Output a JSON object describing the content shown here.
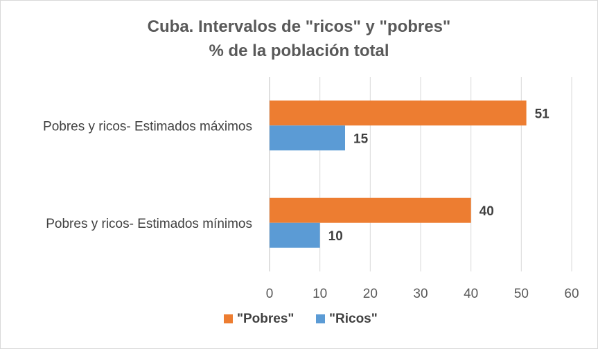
{
  "chart_data": {
    "type": "bar",
    "orientation": "horizontal",
    "title": "Cuba. Intervalos de \"ricos\" y \"pobres\"",
    "subtitle": "% de la población total",
    "categories": [
      "Pobres y ricos- Estimados máximos",
      "Pobres y ricos- Estimados mínimos"
    ],
    "series": [
      {
        "name": "\"Pobres\"",
        "color": "#ed7d31",
        "values": [
          51,
          40
        ]
      },
      {
        "name": "\"Ricos\"",
        "color": "#5b9bd5",
        "values": [
          15,
          10
        ]
      }
    ],
    "xlim": [
      0,
      60
    ],
    "xticks": [
      0,
      10,
      20,
      30,
      40,
      50,
      60
    ],
    "grid": true,
    "legend_position": "bottom",
    "data_labels": true
  }
}
